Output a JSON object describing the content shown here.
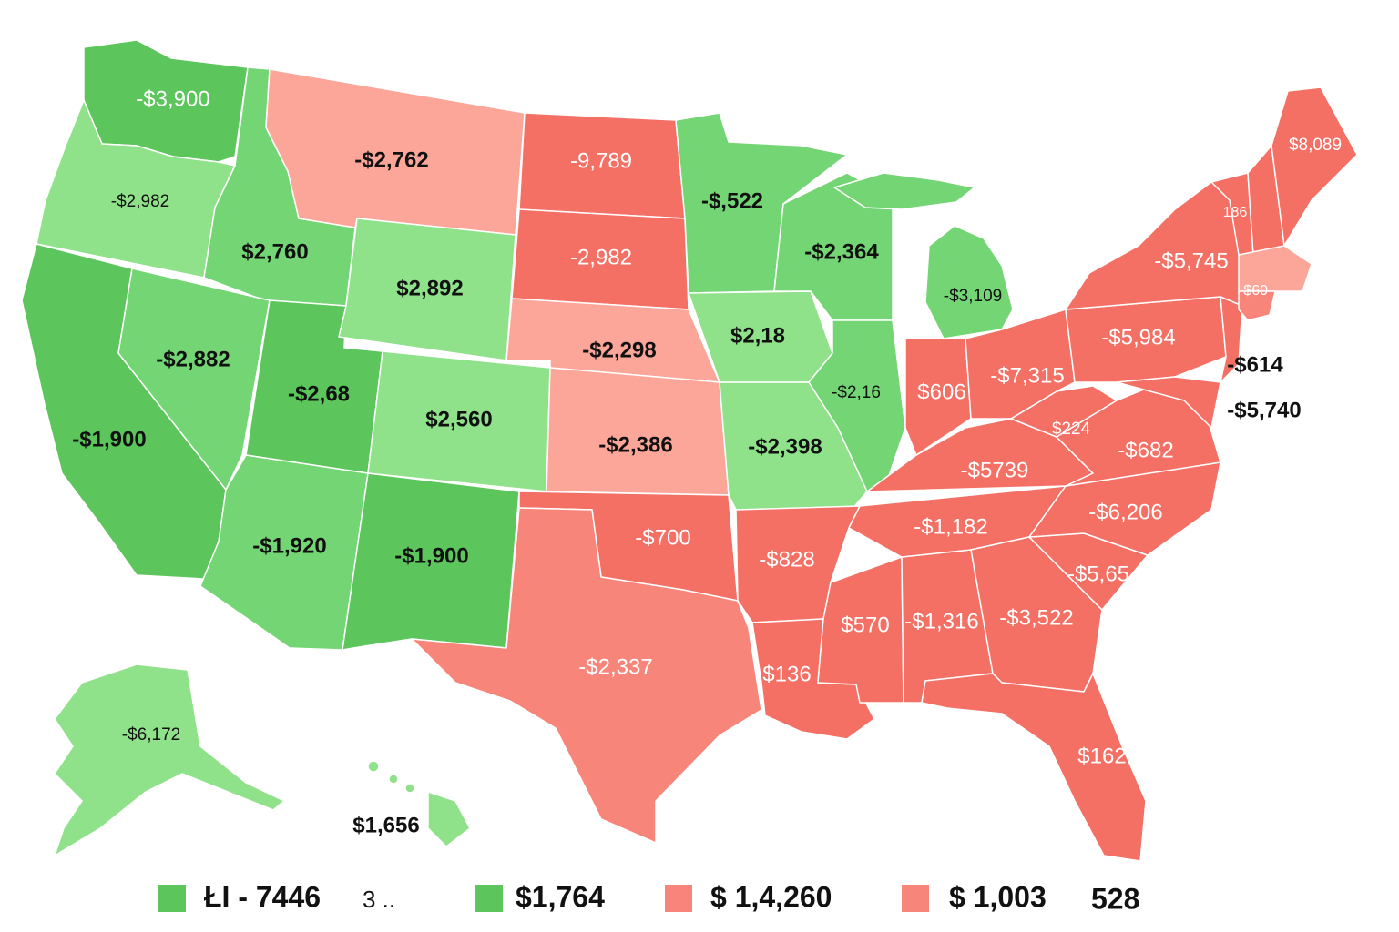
{
  "colors": {
    "green_dark": "#5cc55c",
    "green_mid": "#74d574",
    "green_light": "#8fe28a",
    "red_dark": "#f46f64",
    "red_mid": "#f8857a",
    "red_light": "#fba699"
  },
  "states": {
    "wa": {
      "label": "-$3,900"
    },
    "or": {
      "label": "-$2,982"
    },
    "ca": {
      "label": "-$1,900"
    },
    "id": {
      "label": "$2,760"
    },
    "nv": {
      "label": "-$2,882"
    },
    "ut": {
      "label": "-$2,68"
    },
    "az": {
      "label": "-$1,920"
    },
    "mt": {
      "label": "-$2,762"
    },
    "wy": {
      "label": "$2,892"
    },
    "co": {
      "label": "$2,560"
    },
    "nm": {
      "label": "-$1,900"
    },
    "nd": {
      "label": "-9,789"
    },
    "sd": {
      "label": "-2,982"
    },
    "ne": {
      "label": "-$2,298"
    },
    "ks": {
      "label": "-$2,386"
    },
    "ok": {
      "label": "-$700"
    },
    "tx": {
      "label": "-$2,337"
    },
    "mn": {
      "label": "-$,522"
    },
    "ia": {
      "label": "$2,18"
    },
    "mo": {
      "label": "-$2,398"
    },
    "ar": {
      "label": "-$828"
    },
    "la": {
      "label": "$136"
    },
    "wi": {
      "label": "-$2,364"
    },
    "il": {
      "label": "-$2,16"
    },
    "mi": {
      "label": "-$3,109"
    },
    "in": {
      "label": "$606"
    },
    "oh": {
      "label": "-$7,315"
    },
    "ky": {
      "label": "-$5739"
    },
    "tn": {
      "label": "-$1,182"
    },
    "ms": {
      "label": "$570"
    },
    "al": {
      "label": "-$1,316"
    },
    "ga": {
      "label": "-$3,522"
    },
    "fl": {
      "label": "$162"
    },
    "sc": {
      "label": "-$5,65"
    },
    "nc": {
      "label": "-$6,206"
    },
    "va": {
      "label": "-$682"
    },
    "wv": {
      "label": "$224"
    },
    "pa": {
      "label": "-$5,984"
    },
    "ny": {
      "label": "-$5,745"
    },
    "vt": {
      "label": "186"
    },
    "me": {
      "label": "$8,089"
    },
    "ma": {
      "label": "-$60"
    },
    "nj": {
      "label": "-$614"
    },
    "md": {
      "label": "-$5,740"
    },
    "ak": {
      "label": "-$6,172"
    },
    "hi": {
      "label": "$1,656"
    }
  },
  "legend": [
    {
      "label": "ŁI - 7446",
      "extra": "3 ..",
      "color": "#5cc55c"
    },
    {
      "label": "$1,764",
      "extra": "",
      "color": "#5cc55c"
    },
    {
      "label": "$ 1,4,260",
      "extra": "",
      "color": "#f8857a"
    },
    {
      "label": "$ 1,003",
      "extra": "528",
      "color": "#f8857a"
    }
  ]
}
